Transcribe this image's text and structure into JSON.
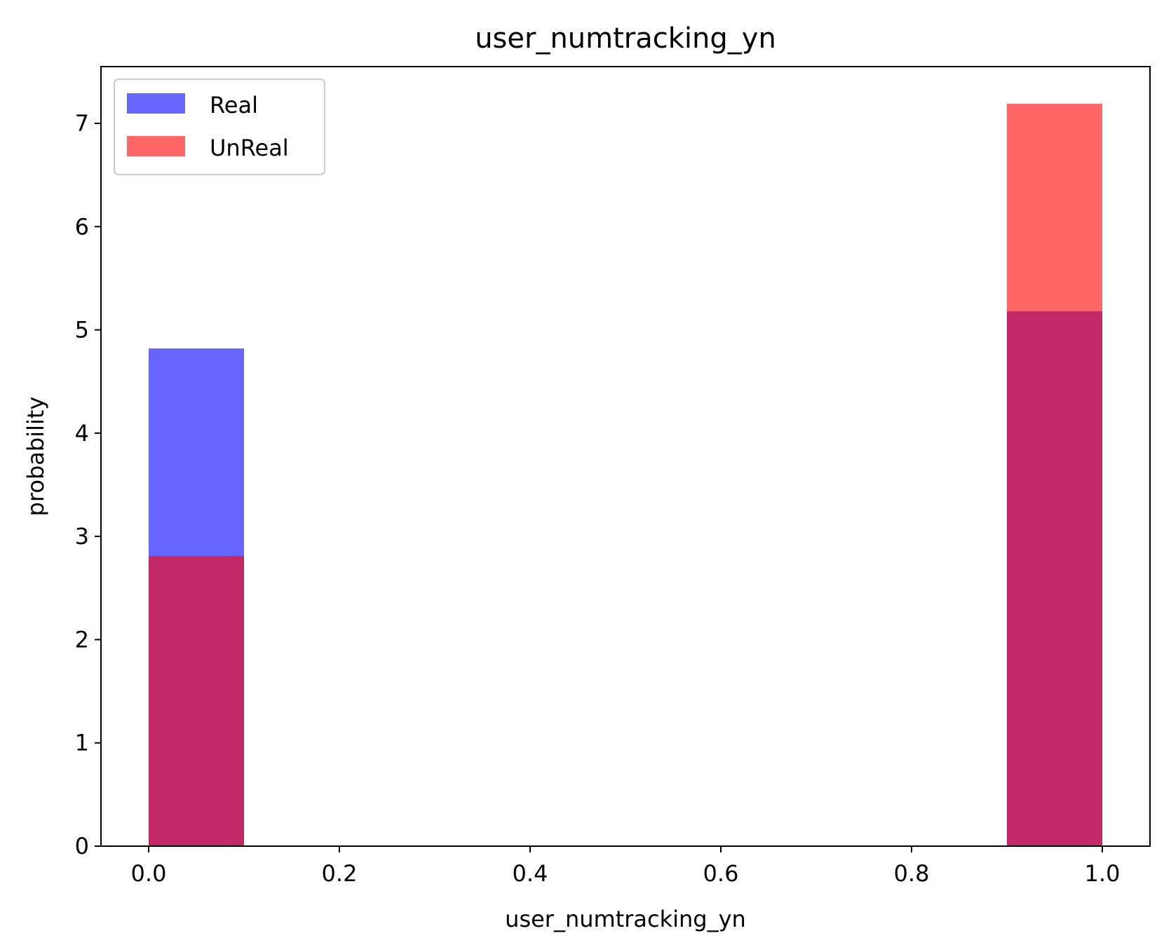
{
  "chart_data": {
    "type": "bar",
    "title": "user_numtracking_yn",
    "xlabel": "user_numtracking_yn",
    "ylabel": "probability",
    "xlim": [
      -0.05,
      1.05
    ],
    "ylim": [
      0,
      7.55
    ],
    "xticks": [
      "0.0",
      "0.2",
      "0.4",
      "0.6",
      "0.8",
      "1.0"
    ],
    "yticks": [
      "0",
      "1",
      "2",
      "3",
      "4",
      "5",
      "6",
      "7"
    ],
    "grid": false,
    "legend_position": "top-left",
    "series": [
      {
        "name": "Real",
        "color": "#0000ff",
        "opacity": 0.6,
        "bins": [
          {
            "x0": 0.0,
            "x1": 0.1,
            "value": 4.82
          },
          {
            "x0": 0.9,
            "x1": 1.0,
            "value": 5.18
          }
        ]
      },
      {
        "name": "UnReal",
        "color": "#ff0000",
        "opacity": 0.6,
        "bins": [
          {
            "x0": 0.0,
            "x1": 0.1,
            "value": 2.81
          },
          {
            "x0": 0.9,
            "x1": 1.0,
            "value": 7.19
          }
        ]
      }
    ]
  }
}
